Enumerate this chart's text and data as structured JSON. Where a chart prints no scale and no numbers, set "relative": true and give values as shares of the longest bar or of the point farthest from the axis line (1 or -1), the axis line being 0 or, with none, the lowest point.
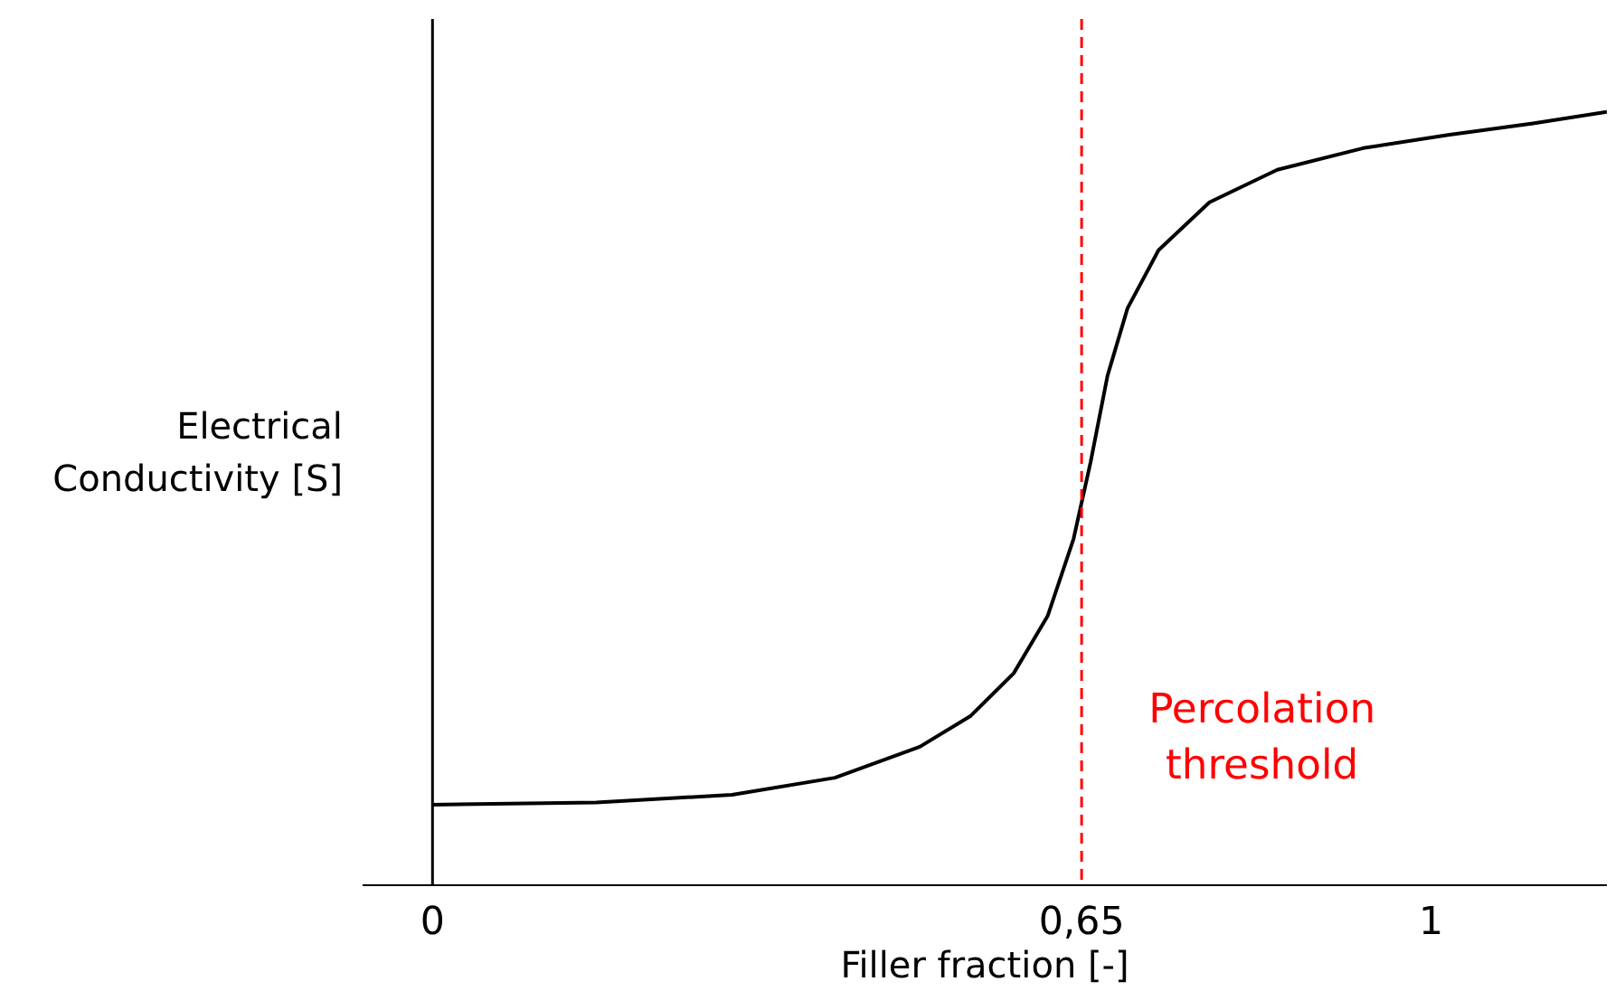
{
  "chart_data": {
    "type": "line",
    "relative": true,
    "xlabel": "Filler fraction [-]",
    "ylabel": "Electrical Conductivity [S]",
    "x": [
      0,
      0.164,
      0.3,
      0.403,
      0.488,
      0.539,
      0.582,
      0.616,
      0.642,
      0.659,
      0.676,
      0.696,
      0.727,
      0.778,
      0.846,
      0.932,
      1.017,
      1.102,
      1.176
    ],
    "series": [
      {
        "color": "#000000",
        "values": [
          0.104,
          0.107,
          0.117,
          0.139,
          0.179,
          0.219,
          0.274,
          0.348,
          0.448,
          0.547,
          0.659,
          0.746,
          0.821,
          0.883,
          0.925,
          0.953,
          0.97,
          0.985,
          1.0
        ]
      }
    ],
    "xlim": [
      -0.07,
      1.176
    ],
    "xticks": [
      0,
      {
        "value": 0.65,
        "label": "0,65"
      },
      1
    ],
    "ref_lines": [
      {
        "axis": "x",
        "value": 0.65,
        "label": "Percolation threshold",
        "color": "#ff0000",
        "line_style": "dashed"
      }
    ],
    "grid": false,
    "marker": "none",
    "line_style": "solid"
  }
}
